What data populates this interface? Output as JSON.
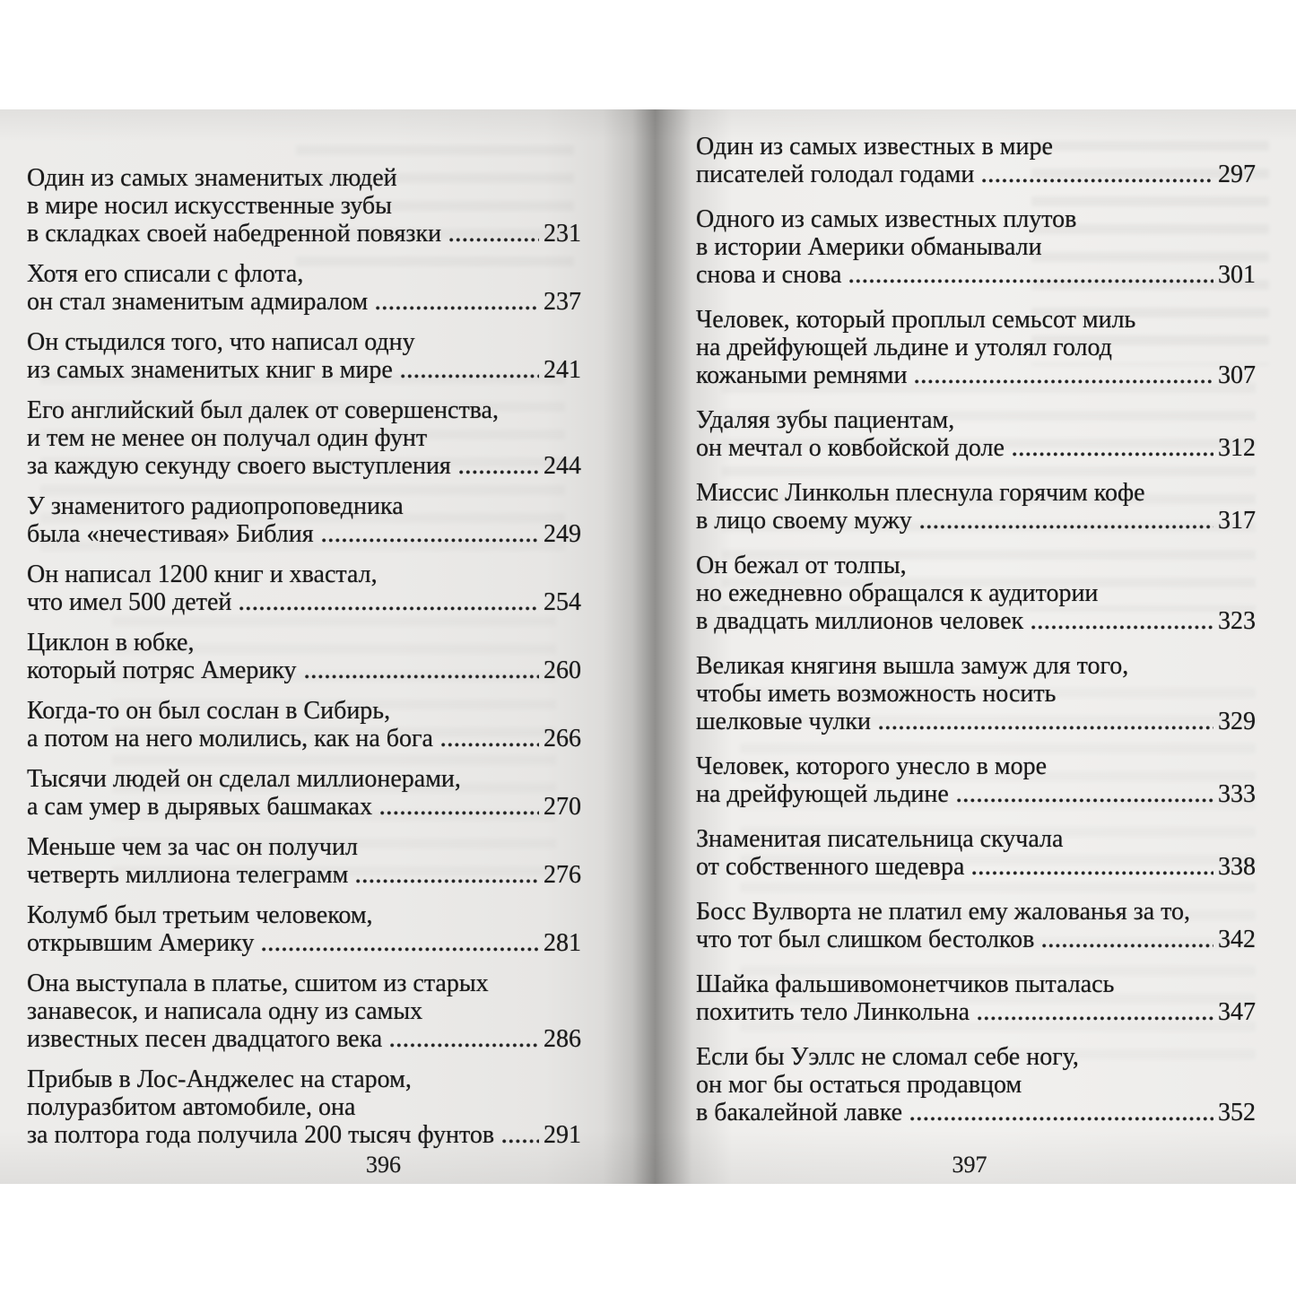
{
  "colors": {
    "background": "#ffffff",
    "page_paper": "#edecea",
    "gutter_shadow": "#908f8d",
    "ink": "#1b1b1b"
  },
  "pages": {
    "left": {
      "folio": "396",
      "entries": [
        {
          "lines": [
            "Один из самых знаменитых людей",
            "в мире носил искусственные зубы",
            "в складках своей набедренной повязки"
          ],
          "page_ref": "231"
        },
        {
          "lines": [
            "Хотя его списали с флота,",
            "он стал знаменитым адмиралом"
          ],
          "page_ref": "237"
        },
        {
          "lines": [
            "Он стыдился того, что написал одну",
            "из самых знаменитых книг в мире"
          ],
          "page_ref": "241"
        },
        {
          "lines": [
            "Его английский был далек от совершенства,",
            "и тем не менее он получал один фунт",
            "за каждую секунду своего выступления"
          ],
          "page_ref": "244"
        },
        {
          "lines": [
            "У знаменитого радиопроповедника",
            "была «нечестивая» Библия"
          ],
          "page_ref": "249"
        },
        {
          "lines": [
            "Он написал 1200 книг и хвастал,",
            "что имел 500 детей"
          ],
          "page_ref": "254"
        },
        {
          "lines": [
            "Циклон в юбке,",
            "который потряс Америку"
          ],
          "page_ref": "260"
        },
        {
          "lines": [
            "Когда-то он был сослан в Сибирь,",
            "а потом на него молились, как на бога"
          ],
          "page_ref": "266"
        },
        {
          "lines": [
            "Тысячи людей он сделал миллионерами,",
            "а сам умер в дырявых башмаках"
          ],
          "page_ref": "270"
        },
        {
          "lines": [
            "Меньше чем за час он получил",
            "четверть миллиона телеграмм"
          ],
          "page_ref": "276"
        },
        {
          "lines": [
            "Колумб был третьим человеком,",
            "открывшим Америку"
          ],
          "page_ref": "281"
        },
        {
          "lines": [
            "Она выступала в платье, сшитом из старых",
            "занавесок, и написала одну из самых",
            "известных песен двадцатого века"
          ],
          "page_ref": "286"
        },
        {
          "lines": [
            "Прибыв в Лос-Анджелес на старом,",
            "полуразбитом автомобиле, она",
            "за полтора года получила 200 тысяч фунтов"
          ],
          "page_ref": "291"
        }
      ]
    },
    "right": {
      "folio": "397",
      "entries": [
        {
          "lines": [
            "Один из самых известных в мире",
            "писателей голодал годами"
          ],
          "page_ref": "297"
        },
        {
          "lines": [
            "Одного из самых известных плутов",
            "в истории Америки обманывали",
            "снова и снова"
          ],
          "page_ref": "301"
        },
        {
          "lines": [
            "Человек, который проплыл семьсот миль",
            "на дрейфующей льдине и утолял голод",
            "кожаными ремнями"
          ],
          "page_ref": "307"
        },
        {
          "lines": [
            "Удаляя зубы пациентам,",
            "он мечтал о ковбойской доле"
          ],
          "page_ref": "312"
        },
        {
          "lines": [
            "Миссис Линкольн плеснула горячим кофе",
            "в лицо своему мужу"
          ],
          "page_ref": "317"
        },
        {
          "lines": [
            "Он бежал от толпы,",
            "но ежедневно обращался к аудитории",
            "в двадцать миллионов человек"
          ],
          "page_ref": "323"
        },
        {
          "lines": [
            "Великая княгиня вышла замуж для того,",
            "чтобы иметь возможность носить",
            "шелковые чулки"
          ],
          "page_ref": "329"
        },
        {
          "lines": [
            "Человек, которого унесло в море",
            "на дрейфующей льдине"
          ],
          "page_ref": "333"
        },
        {
          "lines": [
            "Знаменитая писательница скучала",
            "от собственного шедевра"
          ],
          "page_ref": "338"
        },
        {
          "lines": [
            "Босс Вулворта не платил ему жалованья за то,",
            "что тот был слишком бестолков"
          ],
          "page_ref": "342"
        },
        {
          "lines": [
            "Шайка фальшивомонетчиков пыталась",
            "похитить тело Линкольна"
          ],
          "page_ref": "347"
        },
        {
          "lines": [
            "Если бы Уэллс не сломал себе ногу,",
            "он мог бы остаться продавцом",
            "в бакалейной лавке"
          ],
          "page_ref": "352"
        }
      ]
    }
  }
}
